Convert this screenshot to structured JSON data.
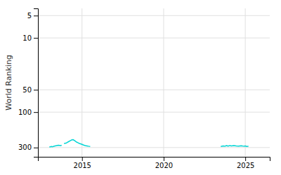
{
  "chart_data": {
    "type": "line",
    "ylabel": "World Ranking",
    "x": [
      2013.0,
      2013.15,
      2013.2,
      2013.3,
      2013.55,
      2013.7,
      2013.75,
      null,
      2013.9,
      2014.05,
      2014.15,
      2014.25,
      2014.35,
      2014.45,
      2014.55,
      2014.65,
      2014.75,
      2014.85,
      2015.0,
      2015.1,
      2015.2,
      2015.3,
      2015.4,
      2015.5,
      null,
      2023.5,
      2023.65,
      2023.75,
      2023.85,
      2023.95,
      2024.05,
      2024.15,
      2024.3,
      2024.45,
      2024.6,
      2024.75,
      2024.9,
      2025.0,
      2025.1,
      2025.2
    ],
    "values": [
      295,
      291,
      293,
      287,
      280,
      283,
      279,
      null,
      265,
      260,
      252,
      245,
      238,
      235,
      242,
      252,
      258,
      265,
      272,
      278,
      282,
      285,
      288,
      290,
      null,
      290,
      285,
      288,
      283,
      287,
      282,
      285,
      282,
      285,
      287,
      284,
      288,
      286,
      290,
      288
    ],
    "color": "#00d4d4",
    "xlim": [
      2012.3,
      2026.5
    ],
    "xticks": [
      2015,
      2020,
      2025
    ],
    "ylim": [
      400,
      4
    ],
    "yticks": [
      300,
      100,
      50,
      10,
      5
    ],
    "log": "y",
    "grid": true
  }
}
